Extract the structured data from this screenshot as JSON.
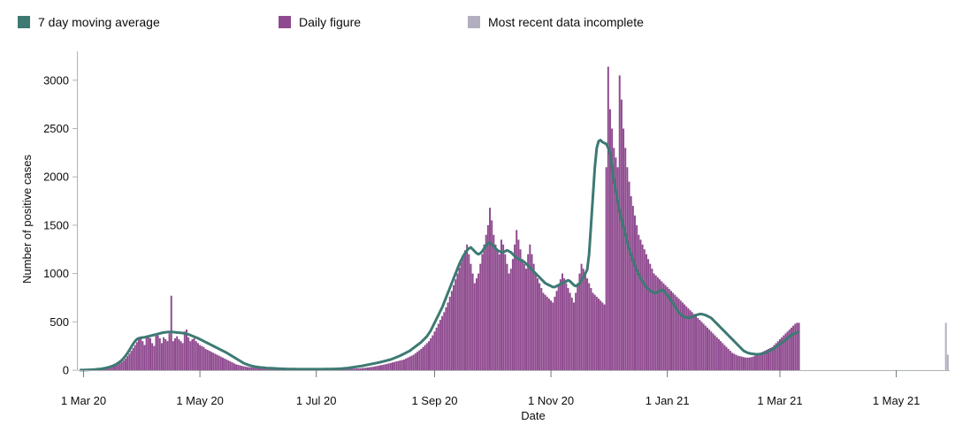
{
  "legend": {
    "items": [
      {
        "label": "7 day moving average",
        "color": "#3d7a73"
      },
      {
        "label": "Daily figure",
        "color": "#8f4a8f"
      },
      {
        "label": "Most recent data incomplete",
        "color": "#b3aebf"
      }
    ]
  },
  "chart_data": {
    "type": "bar",
    "title": "",
    "xlabel": "Date",
    "ylabel": "Number of positive cases",
    "ylim": [
      0,
      3300
    ],
    "xlim": [
      "2020-02-27",
      "2021-05-29"
    ],
    "y_ticks": [
      0,
      500,
      1000,
      1500,
      2000,
      2500,
      3000
    ],
    "x_ticks": [
      {
        "date": "2020-03-01",
        "label": "1 Mar 20"
      },
      {
        "date": "2020-05-01",
        "label": "1 May 20"
      },
      {
        "date": "2020-07-01",
        "label": "1 Jul 20"
      },
      {
        "date": "2020-09-01",
        "label": "1 Sep 20"
      },
      {
        "date": "2020-11-01",
        "label": "1 Nov 20"
      },
      {
        "date": "2021-01-01",
        "label": "1 Jan 21"
      },
      {
        "date": "2021-03-01",
        "label": "1 Mar 21"
      },
      {
        "date": "2021-05-01",
        "label": "1 May 21"
      }
    ],
    "grid": false,
    "legend_position": "top",
    "series": [
      {
        "name": "Daily figure",
        "color": "#8f4a8f",
        "start_date": "2020-02-28",
        "step_days": 1,
        "values": [
          0,
          0,
          1,
          0,
          1,
          2,
          3,
          3,
          4,
          6,
          8,
          10,
          12,
          15,
          18,
          22,
          27,
          33,
          40,
          48,
          58,
          70,
          85,
          100,
          120,
          145,
          170,
          200,
          230,
          260,
          290,
          320,
          340,
          300,
          260,
          340,
          360,
          330,
          280,
          250,
          380,
          360,
          330,
          280,
          340,
          320,
          300,
          380,
          770,
          300,
          330,
          350,
          320,
          300,
          280,
          400,
          420,
          340,
          300,
          320,
          330,
          300,
          280,
          260,
          250,
          240,
          220,
          210,
          200,
          190,
          180,
          170,
          160,
          150,
          140,
          130,
          120,
          110,
          100,
          90,
          80,
          70,
          60,
          55,
          50,
          45,
          40,
          36,
          32,
          30,
          28,
          26,
          24,
          22,
          20,
          19,
          18,
          17,
          16,
          15,
          15,
          14,
          14,
          13,
          13,
          12,
          12,
          11,
          11,
          10,
          10,
          10,
          10,
          9,
          9,
          9,
          9,
          9,
          8,
          8,
          8,
          8,
          8,
          8,
          8,
          8,
          8,
          9,
          9,
          9,
          9,
          10,
          10,
          10,
          10,
          10,
          11,
          11,
          12,
          12,
          13,
          13,
          14,
          15,
          16,
          17,
          18,
          20,
          22,
          24,
          26,
          28,
          30,
          33,
          36,
          40,
          44,
          48,
          52,
          56,
          60,
          65,
          70,
          75,
          80,
          85,
          90,
          95,
          100,
          105,
          110,
          120,
          130,
          140,
          150,
          160,
          175,
          190,
          205,
          220,
          240,
          260,
          280,
          300,
          330,
          360,
          400,
          440,
          480,
          520,
          560,
          600,
          650,
          700,
          760,
          820,
          880,
          940,
          1000,
          1060,
          1120,
          1180,
          1240,
          1300,
          1200,
          1100,
          1000,
          900,
          950,
          1000,
          1100,
          1200,
          1300,
          1400,
          1500,
          1680,
          1550,
          1400,
          1300,
          1250,
          1200,
          1350,
          1300,
          1200,
          1100,
          1000,
          1050,
          1150,
          1300,
          1450,
          1350,
          1250,
          1150,
          1100,
          1050,
          1200,
          1300,
          1200,
          1100,
          1000,
          950,
          900,
          850,
          800,
          780,
          760,
          740,
          720,
          700,
          760,
          820,
          880,
          940,
          1000,
          950,
          900,
          850,
          800,
          750,
          700,
          800,
          900,
          1000,
          1100,
          1050,
          1000,
          950,
          900,
          850,
          800,
          780,
          760,
          740,
          720,
          700,
          680,
          2100,
          3140,
          2700,
          2500,
          2300,
          2200,
          2100,
          3050,
          2800,
          2500,
          2300,
          2100,
          1950,
          1800,
          1700,
          1600,
          1500,
          1400,
          1350,
          1300,
          1250,
          1200,
          1150,
          1100,
          1050,
          1000,
          980,
          960,
          940,
          920,
          900,
          880,
          860,
          840,
          820,
          800,
          780,
          760,
          740,
          720,
          700,
          680,
          660,
          640,
          620,
          600,
          580,
          560,
          540,
          520,
          500,
          480,
          460,
          440,
          420,
          400,
          380,
          360,
          340,
          320,
          300,
          280,
          260,
          240,
          220,
          200,
          180,
          170,
          160,
          150,
          145,
          140,
          135,
          130,
          130,
          130,
          135,
          140,
          150,
          160,
          170,
          180,
          190,
          200,
          210,
          220,
          230,
          240,
          260,
          280,
          300,
          320,
          340,
          360,
          380,
          400,
          420,
          440,
          460,
          480,
          490,
          490
        ],
        "smooth": [
          1,
          1,
          1,
          2,
          2,
          3,
          4,
          6,
          7,
          9,
          11,
          13,
          16,
          20,
          24,
          29,
          35,
          42,
          50,
          60,
          72,
          86,
          103,
          124,
          148,
          176,
          207,
          240,
          272,
          300,
          320,
          330,
          335,
          338,
          340,
          345,
          350,
          355,
          360,
          365,
          370,
          375,
          380,
          385,
          390,
          392,
          394,
          395,
          395,
          394,
          392,
          390,
          388,
          386,
          384,
          380,
          375,
          370,
          362,
          354,
          346,
          338,
          330,
          320,
          310,
          300,
          290,
          280,
          270,
          260,
          250,
          240,
          230,
          220,
          210,
          200,
          190,
          180,
          168,
          156,
          144,
          132,
          120,
          108,
          96,
          84,
          72,
          64,
          56,
          50,
          44,
          40,
          36,
          33,
          30,
          28,
          26,
          24,
          22,
          21,
          20,
          19,
          18,
          17,
          16,
          15,
          14,
          14,
          13,
          12,
          12,
          11,
          11,
          11,
          10,
          10,
          10,
          10,
          10,
          10,
          10,
          10,
          10,
          10,
          10,
          10,
          10,
          10,
          11,
          11,
          11,
          12,
          12,
          13,
          13,
          14,
          15,
          16,
          17,
          19,
          21,
          23,
          26,
          29,
          32,
          35,
          38,
          41,
          44,
          48,
          52,
          56,
          60,
          64,
          68,
          72,
          76,
          80,
          85,
          90,
          95,
          100,
          105,
          110,
          118,
          126,
          134,
          142,
          150,
          160,
          170,
          180,
          190,
          200,
          215,
          230,
          245,
          260,
          275,
          290,
          310,
          330,
          350,
          380,
          410,
          450,
          490,
          530,
          570,
          610,
          650,
          700,
          750,
          800,
          850,
          900,
          950,
          1000,
          1050,
          1100,
          1140,
          1180,
          1210,
          1240,
          1260,
          1270,
          1250,
          1230,
          1210,
          1200,
          1210,
          1230,
          1260,
          1290,
          1310,
          1320,
          1300,
          1280,
          1260,
          1240,
          1230,
          1220,
          1220,
          1230,
          1240,
          1230,
          1220,
          1200,
          1180,
          1160,
          1150,
          1140,
          1130,
          1120,
          1100,
          1080,
          1060,
          1040,
          1020,
          1000,
          980,
          960,
          940,
          920,
          900,
          890,
          880,
          870,
          860,
          860,
          870,
          880,
          890,
          900,
          910,
          920,
          930,
          920,
          900,
          880,
          870,
          880,
          900,
          930,
          960,
          1000,
          1040,
          1200,
          1500,
          1800,
          2100,
          2300,
          2370,
          2380,
          2360,
          2350,
          2340,
          2300,
          2250,
          2100,
          1950,
          1850,
          1750,
          1650,
          1560,
          1480,
          1400,
          1320,
          1260,
          1200,
          1140,
          1080,
          1030,
          990,
          950,
          920,
          890,
          860,
          840,
          820,
          810,
          800,
          800,
          810,
          820,
          830,
          820,
          800,
          780,
          750,
          720,
          690,
          660,
          630,
          600,
          580,
          560,
          550,
          545,
          540,
          545,
          550,
          560,
          570,
          575,
          580,
          580,
          575,
          570,
          560,
          550,
          540,
          520,
          500,
          480,
          460,
          440,
          420,
          400,
          380,
          360,
          340,
          320,
          300,
          280,
          260,
          240,
          220,
          200,
          190,
          180,
          175,
          170,
          168,
          166,
          165,
          166,
          168,
          172,
          178,
          185,
          195,
          205,
          215,
          225,
          240,
          255,
          270,
          285,
          300,
          315,
          330,
          345,
          360,
          372,
          382,
          390,
          395
        ]
      },
      {
        "name": "Most recent data incomplete",
        "color": "#b3aebf",
        "start_date": "2021-05-27",
        "step_days": 1,
        "values": [
          490,
          160
        ]
      }
    ]
  }
}
